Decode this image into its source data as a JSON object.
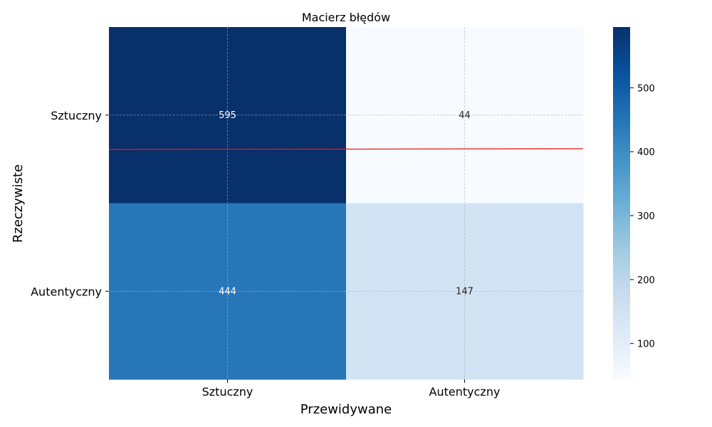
{
  "chart_data": {
    "type": "heatmap",
    "title": "Macierz błędów",
    "xlabel": "Przewidywane",
    "ylabel": "Rzeczywiste",
    "x_categories": [
      "Sztuczny",
      "Autentyczny"
    ],
    "y_categories": [
      "Sztuczny",
      "Autentyczny"
    ],
    "values": [
      [
        595,
        44
      ],
      [
        444,
        147
      ]
    ],
    "colormap": "Blues",
    "colorbar": {
      "min": 44,
      "max": 595,
      "ticks": [
        100,
        200,
        300,
        400,
        500
      ]
    },
    "grid": true,
    "annotations": "cell values",
    "reference_line": {
      "color": "#e31a1c"
    }
  }
}
